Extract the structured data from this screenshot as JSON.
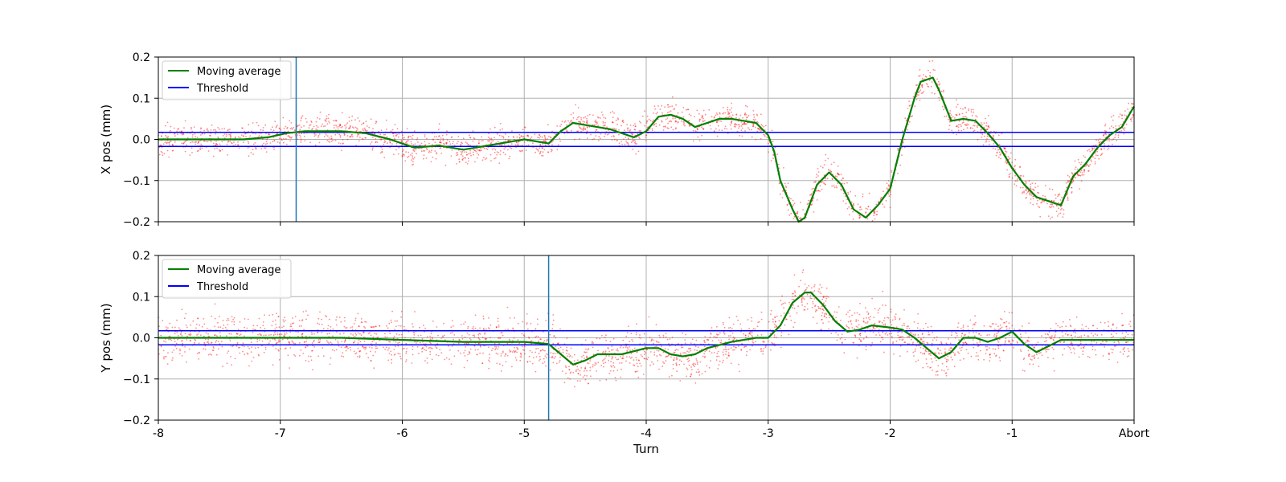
{
  "chart_data": [
    {
      "type": "scatter",
      "ylabel": "X pos (mm)",
      "xlabel": "",
      "xlim": [
        -8,
        0
      ],
      "ylim": [
        -0.2,
        0.2
      ],
      "yticks": [
        -0.2,
        -0.1,
        0.0,
        0.1,
        0.2
      ],
      "ytick_labels": [
        "−0.2",
        "−0.1",
        "0.0",
        "0.1",
        "0.2"
      ],
      "grid": true,
      "legend": "top-left",
      "threshold": [
        0.017,
        -0.017
      ],
      "vline": -6.87,
      "colors": {
        "scatter": "#ff0000",
        "moving_average": "#008000",
        "threshold": "#0000ff",
        "vline": "#1f77b4"
      },
      "series": [
        {
          "name": "Moving average",
          "x": [
            -8.0,
            -7.7,
            -7.5,
            -7.3,
            -7.1,
            -6.95,
            -6.8,
            -6.6,
            -6.5,
            -6.3,
            -6.1,
            -5.9,
            -5.7,
            -5.5,
            -5.3,
            -5.1,
            -5.0,
            -4.8,
            -4.7,
            -4.6,
            -4.5,
            -4.3,
            -4.1,
            -4.0,
            -3.9,
            -3.8,
            -3.7,
            -3.6,
            -3.5,
            -3.4,
            -3.3,
            -3.2,
            -3.1,
            -3.0,
            -2.95,
            -2.9,
            -2.8,
            -2.75,
            -2.7,
            -2.6,
            -2.5,
            -2.4,
            -2.3,
            -2.2,
            -2.1,
            -2.0,
            -1.9,
            -1.8,
            -1.75,
            -1.65,
            -1.6,
            -1.5,
            -1.4,
            -1.3,
            -1.2,
            -1.1,
            -1.0,
            -0.9,
            -0.8,
            -0.7,
            -0.6,
            -0.5,
            -0.4,
            -0.3,
            -0.2,
            -0.1,
            0.0
          ],
          "y": [
            0.0,
            0.0,
            0.0,
            0.0,
            0.005,
            0.015,
            0.02,
            0.02,
            0.02,
            0.015,
            0.0,
            -0.02,
            -0.015,
            -0.025,
            -0.015,
            -0.005,
            0.0,
            -0.01,
            0.02,
            0.04,
            0.035,
            0.025,
            0.005,
            0.02,
            0.055,
            0.06,
            0.05,
            0.03,
            0.04,
            0.05,
            0.05,
            0.045,
            0.04,
            0.01,
            -0.03,
            -0.1,
            -0.17,
            -0.2,
            -0.19,
            -0.11,
            -0.08,
            -0.11,
            -0.17,
            -0.19,
            -0.16,
            -0.12,
            0.0,
            0.1,
            0.14,
            0.15,
            0.12,
            0.045,
            0.05,
            0.045,
            0.015,
            -0.02,
            -0.07,
            -0.11,
            -0.14,
            -0.15,
            -0.16,
            -0.09,
            -0.06,
            -0.02,
            0.01,
            0.03,
            0.08
          ]
        },
        {
          "name": "Threshold",
          "y": [
            0.017,
            -0.017
          ]
        }
      ]
    },
    {
      "type": "scatter",
      "ylabel": "Y pos (mm)",
      "xlabel": "Turn",
      "xlim": [
        -8,
        0
      ],
      "ylim": [
        -0.2,
        0.2
      ],
      "xticks": [
        -8,
        -7,
        -6,
        -5,
        -4,
        -3,
        -2,
        -1,
        0
      ],
      "xtick_labels": [
        "-8",
        "-7",
        "-6",
        "-5",
        "-4",
        "-3",
        "-2",
        "-1",
        "Abort"
      ],
      "yticks": [
        -0.2,
        -0.1,
        0.0,
        0.1,
        0.2
      ],
      "ytick_labels": [
        "−0.2",
        "−0.1",
        "0.0",
        "0.1",
        "0.2"
      ],
      "grid": true,
      "legend": "top-left",
      "threshold": [
        0.017,
        -0.017
      ],
      "vline": -4.8,
      "colors": {
        "scatter": "#ff0000",
        "moving_average": "#008000",
        "threshold": "#0000ff",
        "vline": "#1f77b4"
      },
      "series": [
        {
          "name": "Moving average",
          "x": [
            -8.0,
            -7.5,
            -7.0,
            -6.5,
            -6.0,
            -5.5,
            -5.0,
            -4.8,
            -4.7,
            -4.6,
            -4.5,
            -4.4,
            -4.2,
            -4.0,
            -3.9,
            -3.8,
            -3.7,
            -3.6,
            -3.5,
            -3.3,
            -3.1,
            -3.0,
            -2.9,
            -2.8,
            -2.7,
            -2.65,
            -2.55,
            -2.45,
            -2.35,
            -2.25,
            -2.15,
            -2.0,
            -1.9,
            -1.8,
            -1.7,
            -1.6,
            -1.5,
            -1.4,
            -1.3,
            -1.2,
            -1.1,
            -1.0,
            -0.9,
            -0.8,
            -0.7,
            -0.6,
            -0.5,
            -0.3,
            -0.1,
            0.0
          ],
          "y": [
            0.0,
            0.0,
            0.0,
            0.0,
            -0.005,
            -0.01,
            -0.01,
            -0.015,
            -0.04,
            -0.065,
            -0.055,
            -0.04,
            -0.04,
            -0.025,
            -0.025,
            -0.04,
            -0.045,
            -0.04,
            -0.025,
            -0.01,
            0.0,
            0.0,
            0.03,
            0.085,
            0.11,
            0.11,
            0.08,
            0.04,
            0.015,
            0.02,
            0.03,
            0.025,
            0.02,
            0.0,
            -0.025,
            -0.05,
            -0.035,
            0.0,
            0.0,
            -0.01,
            0.0,
            0.015,
            -0.015,
            -0.035,
            -0.02,
            -0.005,
            -0.005,
            -0.005,
            -0.005,
            -0.005
          ]
        },
        {
          "name": "Threshold",
          "y": [
            0.017,
            -0.017
          ]
        }
      ]
    }
  ]
}
